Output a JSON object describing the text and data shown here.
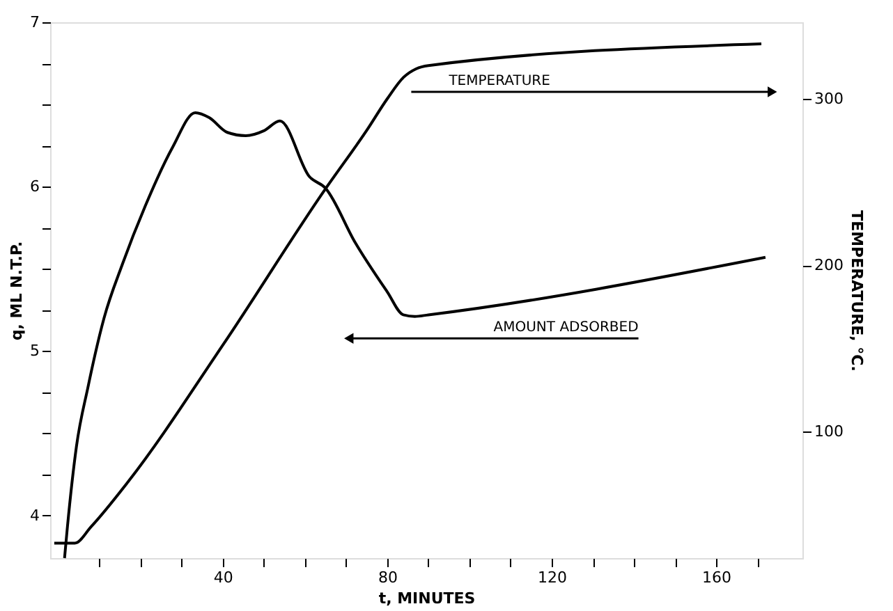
{
  "chart_data": {
    "type": "line",
    "xlabel": "t, MINUTES",
    "ylabel": "q, ML N.T.P.",
    "y2label": "TEMPERATURE, °C.",
    "xlim": [
      -2,
      181
    ],
    "ylim": [
      3.74,
      7
    ],
    "y2lim": [
      24,
      346
    ],
    "xticks": [
      {
        "value": 10,
        "label": null
      },
      {
        "value": 20,
        "label": null
      },
      {
        "value": 30,
        "label": null
      },
      40,
      {
        "value": 50,
        "label": null
      },
      {
        "value": 60,
        "label": null
      },
      {
        "value": 70,
        "label": null
      },
      80,
      {
        "value": 90,
        "label": null
      },
      {
        "value": 100,
        "label": null
      },
      {
        "value": 110,
        "label": null
      },
      120,
      {
        "value": 130,
        "label": null
      },
      {
        "value": 140,
        "label": null
      },
      {
        "value": 150,
        "label": null
      },
      160,
      {
        "value": 170,
        "label": null
      }
    ],
    "yticks": [
      4,
      {
        "value": 4.25,
        "label": null
      },
      {
        "value": 4.5,
        "label": null
      },
      {
        "value": 4.75,
        "label": null
      },
      5,
      {
        "value": 5.25,
        "label": null
      },
      {
        "value": 5.5,
        "label": null
      },
      {
        "value": 5.75,
        "label": null
      },
      6,
      {
        "value": 6.25,
        "label": null
      },
      {
        "value": 6.5,
        "label": null
      },
      {
        "value": 6.75,
        "label": null
      },
      7
    ],
    "y2ticks": [
      100,
      200,
      300
    ],
    "series": [
      {
        "color": "#000000",
        "x": [
          1.5,
          2.2,
          4.4,
          7.2,
          11.1,
          15.6,
          21.1,
          27.8,
          33.3,
          36.7,
          41.1,
          45.6,
          50,
          53.9,
          61.1,
          65,
          72.2,
          80,
          83.9,
          86.7,
          90,
          172
        ],
        "values": [
          3.74,
          3.93,
          4.42,
          4.78,
          5.2,
          5.53,
          5.88,
          6.24,
          6.45,
          6.42,
          6.33,
          6.31,
          6.34,
          6.4,
          6.06,
          5.99,
          5.66,
          5.36,
          5.22,
          5.21,
          5.22,
          5.57
        ]
      },
      {
        "color": "#000000",
        "axis": "y2",
        "x": [
          -1,
          4,
          8,
          17,
          40,
          65,
          75,
          80,
          84,
          87,
          90,
          171
        ],
        "values": [
          33,
          33,
          43,
          70,
          152,
          246,
          281,
          300,
          313,
          318,
          320,
          333
        ]
      }
    ],
    "annotations": [
      "TEMPERATURE",
      "AMOUNT ADSORBED"
    ],
    "grid": false,
    "legend": false,
    "marker": "none",
    "line_style": "solid"
  }
}
